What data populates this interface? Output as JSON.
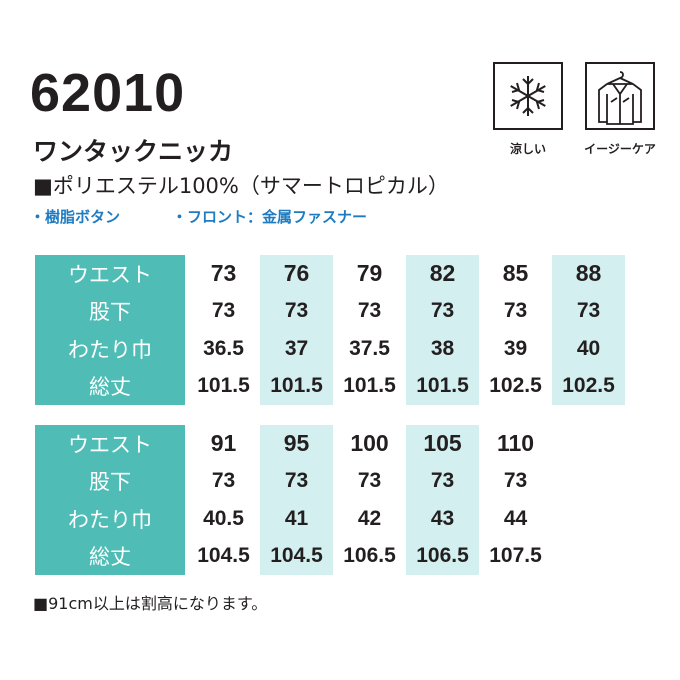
{
  "header": {
    "model": "62010",
    "name": "ワンタックニッカ",
    "material": "■ポリエステル100%（サマートロピカル）",
    "features": [
      "・樹脂ボタン",
      "・フロント：金属ファスナー"
    ]
  },
  "icons": [
    {
      "label": "涼しい"
    },
    {
      "label": "イージーケア"
    }
  ],
  "tables": [
    {
      "row_labels": [
        "ウエスト",
        "股下",
        "わたり巾",
        "総丈"
      ],
      "columns": [
        [
          73,
          73,
          36.5,
          101.5
        ],
        [
          76,
          73,
          37,
          101.5
        ],
        [
          79,
          73,
          37.5,
          101.5
        ],
        [
          82,
          73,
          38,
          101.5
        ],
        [
          85,
          73,
          39,
          102.5
        ],
        [
          88,
          73,
          40,
          102.5
        ]
      ]
    },
    {
      "row_labels": [
        "ウエスト",
        "股下",
        "わたり巾",
        "総丈"
      ],
      "columns": [
        [
          91,
          73,
          40.5,
          104.5
        ],
        [
          95,
          73,
          41,
          104.5
        ],
        [
          100,
          73,
          42,
          106.5
        ],
        [
          105,
          73,
          43,
          106.5
        ],
        [
          110,
          73,
          44,
          107.5
        ]
      ]
    }
  ],
  "note": "■91cm以上は割高になります。"
}
